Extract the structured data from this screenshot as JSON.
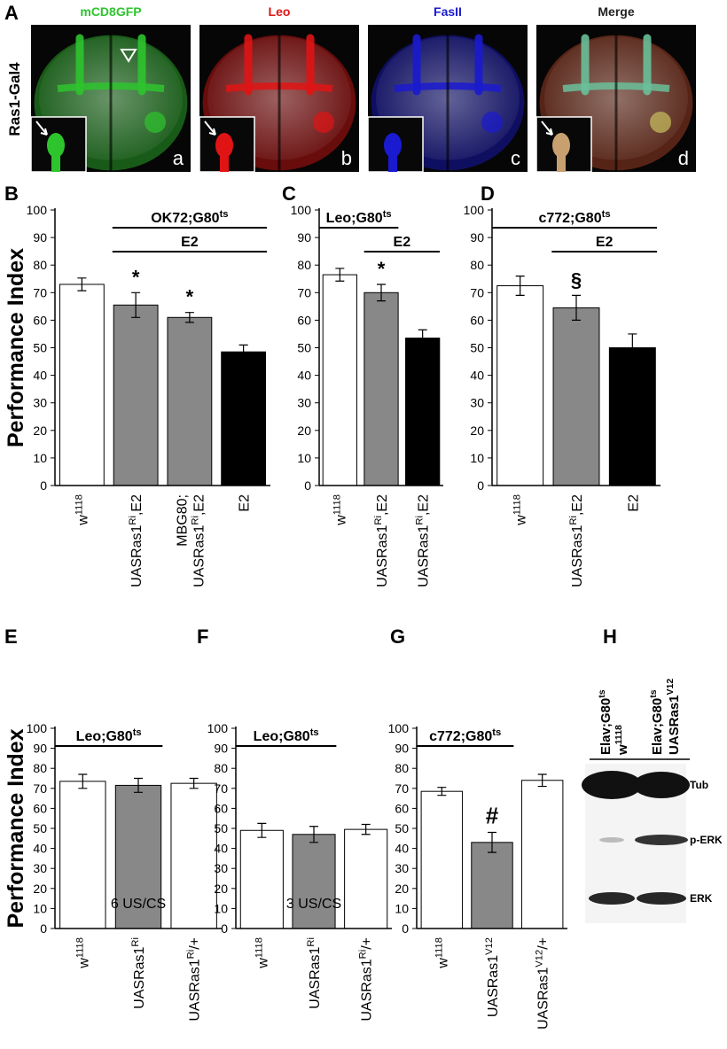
{
  "panel_a": {
    "letter": "A",
    "row_label": "Ras1-Gal4",
    "images": [
      {
        "label": "mCD8GFP",
        "color": "#2ec42e",
        "sub": "a"
      },
      {
        "label": "Leo",
        "color": "#e01414",
        "sub": "b"
      },
      {
        "label": "FasII",
        "color": "#1a1ad0",
        "sub": "c"
      },
      {
        "label": "Merge",
        "color": "#222222",
        "sub": "d"
      }
    ]
  },
  "chart_data": [
    {
      "type": "bar",
      "panel": "B",
      "y_label": "Performance Index",
      "categories": [
        [
          [
            "w",
            "1118"
          ]
        ],
        [
          [
            "UASRas1",
            "Ri",
            ",E2"
          ]
        ],
        [
          [
            "MBG80;"
          ],
          [
            "UASRas1",
            "Ri",
            ",E2"
          ]
        ],
        [
          [
            "E2"
          ]
        ]
      ],
      "series": [
        {
          "values": [
            73,
            65.5,
            61,
            48.5
          ],
          "errors": [
            2.3,
            4.5,
            1.8,
            2.5
          ],
          "colors": [
            "#ffffff",
            "#888888",
            "#888888",
            "#000000"
          ]
        }
      ],
      "brackets": [
        {
          "label": [
            "OK72;G80",
            "ts"
          ],
          "from": 1,
          "to": 3
        },
        {
          "label": [
            "E2"
          ],
          "from": 1,
          "to": 3
        }
      ],
      "annotations": [
        {
          "text": "*",
          "index": 1
        },
        {
          "text": "*",
          "index": 2
        }
      ],
      "ylim": [
        0,
        100
      ],
      "yticks": [
        0,
        10,
        20,
        30,
        40,
        50,
        60,
        70,
        80,
        90,
        100
      ]
    },
    {
      "type": "bar",
      "panel": "C",
      "categories": [
        [
          [
            "w",
            "1118"
          ]
        ],
        [
          [
            "UASRas1",
            "Ri",
            ",E2"
          ]
        ],
        [
          [
            "UASRas1",
            "Ri",
            ",E2"
          ]
        ]
      ],
      "series": [
        {
          "values": [
            76.5,
            70,
            53.5
          ],
          "errors": [
            2.3,
            3,
            3
          ],
          "colors": [
            "#ffffff",
            "#888888",
            "#000000"
          ]
        }
      ],
      "brackets": [
        {
          "label": [
            "Leo;G80",
            "ts"
          ],
          "from": 0,
          "to": 1
        },
        {
          "label": [
            "E2"
          ],
          "from": 1,
          "to": 2
        }
      ],
      "annotations": [
        {
          "text": "*",
          "index": 1
        }
      ],
      "ylim": [
        0,
        100
      ],
      "yticks": [
        0,
        10,
        20,
        30,
        40,
        50,
        60,
        70,
        80,
        90,
        100
      ]
    },
    {
      "type": "bar",
      "panel": "D",
      "categories": [
        [
          [
            "w",
            "1118"
          ]
        ],
        [
          [
            "UASRas1",
            "Ri",
            ",E2"
          ]
        ],
        [
          [
            "E2"
          ]
        ]
      ],
      "series": [
        {
          "values": [
            72.5,
            64.5,
            50
          ],
          "errors": [
            3.5,
            4.5,
            5
          ],
          "colors": [
            "#ffffff",
            "#888888",
            "#000000"
          ]
        }
      ],
      "brackets": [
        {
          "label": [
            "c772;G80",
            "ts"
          ],
          "from": 0,
          "to": 2
        },
        {
          "label": [
            "E2"
          ],
          "from": 1,
          "to": 2
        }
      ],
      "annotations": [
        {
          "text": "§",
          "index": 1
        }
      ],
      "ylim": [
        0,
        100
      ],
      "yticks": [
        0,
        10,
        20,
        30,
        40,
        50,
        60,
        70,
        80,
        90,
        100
      ]
    },
    {
      "type": "bar",
      "panel": "E",
      "y_label": "Performance Index",
      "note": "6 US/CS",
      "categories": [
        [
          [
            "w",
            "1118"
          ]
        ],
        [
          [
            "UASRas1",
            "Ri"
          ]
        ],
        [
          [
            "UASRas1",
            "Ri",
            "/+"
          ]
        ]
      ],
      "series": [
        {
          "values": [
            73.5,
            71.5,
            72.5
          ],
          "errors": [
            3.5,
            3.5,
            2.5
          ],
          "colors": [
            "#ffffff",
            "#888888",
            "#ffffff"
          ]
        }
      ],
      "brackets": [
        {
          "label": [
            "Leo;G80",
            "ts"
          ],
          "from": 0,
          "to": 1
        }
      ],
      "ylim": [
        0,
        100
      ],
      "yticks": [
        0,
        10,
        20,
        30,
        40,
        50,
        60,
        70,
        80,
        90,
        100
      ]
    },
    {
      "type": "bar",
      "panel": "F",
      "note": "3 US/CS",
      "categories": [
        [
          [
            "w",
            "1118"
          ]
        ],
        [
          [
            "UASRas1",
            "Ri"
          ]
        ],
        [
          [
            "UASRas1",
            "Ri",
            "/+"
          ]
        ]
      ],
      "series": [
        {
          "values": [
            49,
            47,
            49.5
          ],
          "errors": [
            3.5,
            4,
            2.5
          ],
          "colors": [
            "#ffffff",
            "#888888",
            "#ffffff"
          ]
        }
      ],
      "brackets": [
        {
          "label": [
            "Leo;G80",
            "ts"
          ],
          "from": 0,
          "to": 1
        }
      ],
      "ylim": [
        0,
        100
      ],
      "yticks": [
        0,
        10,
        20,
        30,
        40,
        50,
        60,
        70,
        80,
        90,
        100
      ]
    },
    {
      "type": "bar",
      "panel": "G",
      "categories": [
        [
          [
            "w",
            "1118"
          ]
        ],
        [
          [
            "UASRas1",
            "V12"
          ]
        ],
        [
          [
            "UASRas1",
            "V12",
            "/+"
          ]
        ]
      ],
      "series": [
        {
          "values": [
            68.5,
            43,
            74
          ],
          "errors": [
            2,
            5,
            3
          ],
          "colors": [
            "#ffffff",
            "#888888",
            "#ffffff"
          ]
        }
      ],
      "brackets": [
        {
          "label": [
            "c772;G80",
            "ts"
          ],
          "from": 0,
          "to": 1
        }
      ],
      "annotations": [
        {
          "text": "#",
          "index": 1
        }
      ],
      "ylim": [
        0,
        100
      ],
      "yticks": [
        0,
        10,
        20,
        30,
        40,
        50,
        60,
        70,
        80,
        90,
        100
      ]
    }
  ],
  "blot": {
    "panel": "H",
    "lanes": [
      [
        [
          "Elav;G80",
          "ts"
        ],
        [
          "w",
          "1118"
        ]
      ],
      [
        [
          "Elav;G80",
          "ts"
        ],
        [
          "UASRas1",
          "V12"
        ]
      ]
    ],
    "bands": [
      "Tub",
      "p-ERK",
      "ERK"
    ]
  }
}
